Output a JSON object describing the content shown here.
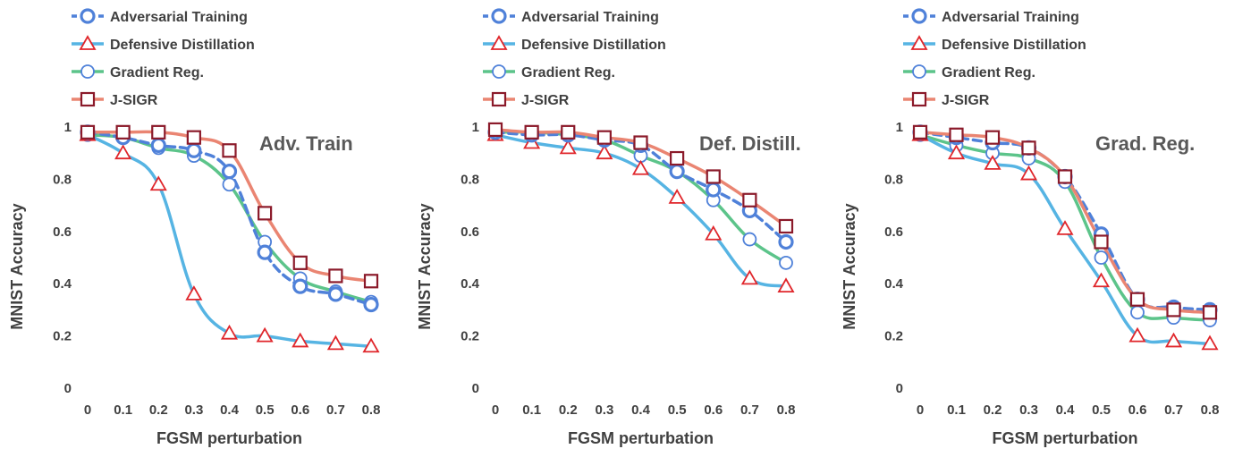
{
  "colors": {
    "adversarial_training": "#4f81d9",
    "defensive_distillation": "#56b4e3",
    "gradient_reg": "#5cc48a",
    "j_sigr": "#ea8572",
    "triangle_marker": "#e0262b",
    "square_marker": "#8b1a2a",
    "text": "#404040"
  },
  "chart_data": [
    {
      "type": "line",
      "annotation": "Adv. Train",
      "xlabel": "FGSM perturbation",
      "ylabel": "MNIST Accuracy",
      "x": [
        0,
        0.1,
        0.2,
        0.3,
        0.4,
        0.5,
        0.6,
        0.7,
        0.8
      ],
      "x_tick_labels": [
        "0",
        "0.1",
        "0.2",
        "0.3",
        "0.4",
        "0.5",
        "0.6",
        "0.7",
        "0.8"
      ],
      "ylim": [
        0,
        1
      ],
      "y_ticks": [
        0,
        0.2,
        0.4,
        0.6,
        0.8,
        1
      ],
      "y_tick_labels": [
        "0",
        "0.2",
        "0.4",
        "0.6",
        "0.8",
        "1"
      ],
      "grid": false,
      "legend_position": "top",
      "series": [
        {
          "name": "Adversarial Training",
          "values": [
            0.98,
            0.96,
            0.93,
            0.91,
            0.83,
            0.52,
            0.39,
            0.36,
            0.32
          ]
        },
        {
          "name": "Defensive Distillation",
          "values": [
            0.97,
            0.9,
            0.78,
            0.36,
            0.21,
            0.2,
            0.18,
            0.17,
            0.16
          ]
        },
        {
          "name": "Gradient Reg.",
          "values": [
            0.97,
            0.96,
            0.92,
            0.89,
            0.78,
            0.56,
            0.42,
            0.37,
            0.33
          ]
        },
        {
          "name": "J-SIGR",
          "values": [
            0.98,
            0.98,
            0.98,
            0.96,
            0.91,
            0.67,
            0.48,
            0.43,
            0.41
          ]
        }
      ]
    },
    {
      "type": "line",
      "annotation": "Def. Distill.",
      "xlabel": "FGSM perturbation",
      "ylabel": "MNIST Accuracy",
      "x": [
        0,
        0.1,
        0.2,
        0.3,
        0.4,
        0.5,
        0.6,
        0.7,
        0.8
      ],
      "x_tick_labels": [
        "0",
        "0.1",
        "0.2",
        "0.3",
        "0.4",
        "0.5",
        "0.6",
        "0.7",
        "0.8"
      ],
      "ylim": [
        0,
        1
      ],
      "y_ticks": [
        0,
        0.2,
        0.4,
        0.6,
        0.8,
        1
      ],
      "y_tick_labels": [
        "0",
        "0.2",
        "0.4",
        "0.6",
        "0.8",
        "1"
      ],
      "grid": false,
      "legend_position": "top",
      "series": [
        {
          "name": "Adversarial Training",
          "values": [
            0.98,
            0.97,
            0.97,
            0.95,
            0.93,
            0.83,
            0.76,
            0.68,
            0.56
          ]
        },
        {
          "name": "Defensive Distillation",
          "values": [
            0.97,
            0.94,
            0.92,
            0.9,
            0.84,
            0.73,
            0.59,
            0.42,
            0.39
          ]
        },
        {
          "name": "Gradient Reg.",
          "values": [
            0.98,
            0.98,
            0.97,
            0.95,
            0.89,
            0.83,
            0.72,
            0.57,
            0.48
          ]
        },
        {
          "name": "J-SIGR",
          "values": [
            0.99,
            0.98,
            0.98,
            0.96,
            0.94,
            0.88,
            0.81,
            0.72,
            0.62
          ]
        }
      ]
    },
    {
      "type": "line",
      "annotation": "Grad. Reg.",
      "xlabel": "FGSM perturbation",
      "ylabel": "MNIST Accuracy",
      "x": [
        0,
        0.1,
        0.2,
        0.3,
        0.4,
        0.5,
        0.6,
        0.7,
        0.8
      ],
      "x_tick_labels": [
        "0",
        "0.1",
        "0.2",
        "0.3",
        "0.4",
        "0.5",
        "0.6",
        "0.7",
        "0.8"
      ],
      "ylim": [
        0,
        1
      ],
      "y_ticks": [
        0,
        0.2,
        0.4,
        0.6,
        0.8,
        1
      ],
      "y_tick_labels": [
        "0",
        "0.2",
        "0.4",
        "0.6",
        "0.8",
        "1"
      ],
      "grid": false,
      "legend_position": "top",
      "series": [
        {
          "name": "Adversarial Training",
          "values": [
            0.98,
            0.96,
            0.94,
            0.92,
            0.81,
            0.59,
            0.34,
            0.31,
            0.3
          ]
        },
        {
          "name": "Defensive Distillation",
          "values": [
            0.97,
            0.9,
            0.86,
            0.82,
            0.61,
            0.41,
            0.2,
            0.18,
            0.17
          ]
        },
        {
          "name": "Gradient Reg.",
          "values": [
            0.97,
            0.93,
            0.9,
            0.88,
            0.79,
            0.5,
            0.29,
            0.27,
            0.26
          ]
        },
        {
          "name": "J-SIGR",
          "values": [
            0.98,
            0.97,
            0.96,
            0.92,
            0.81,
            0.56,
            0.34,
            0.3,
            0.29
          ]
        }
      ]
    }
  ]
}
